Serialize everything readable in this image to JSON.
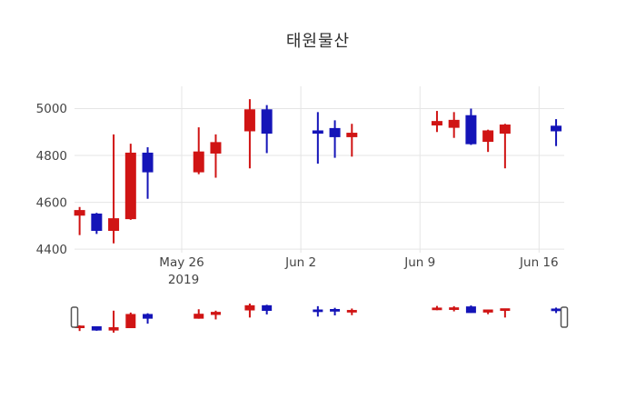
{
  "title": "태원물산",
  "chart_data": {
    "type": "candlestick",
    "title": "태원물산",
    "ylabel": "",
    "xlabel": "",
    "ylim": [
      4385,
      5095
    ],
    "yticks": [
      4400,
      4600,
      4800,
      5000
    ],
    "xticks": [
      {
        "label": "May 26",
        "sublabel": "2019",
        "day": 0
      },
      {
        "label": "Jun 2",
        "sublabel": "",
        "day": 7
      },
      {
        "label": "Jun 9",
        "sublabel": "",
        "day": 14
      },
      {
        "label": "Jun 16",
        "sublabel": "",
        "day": 21
      }
    ],
    "legend": "none",
    "grid": true,
    "increasing_color": "#d01414",
    "decreasing_color": "#1414b8",
    "gridline_color": "#e5e5e5",
    "tick_label_color": "#444444",
    "rangeslider": {
      "present": true,
      "handle_fill": "#ffffff",
      "handle_border": "#555555"
    },
    "candles": [
      {
        "date": "May 20",
        "day": -6,
        "open": 4545,
        "high": 4580,
        "low": 4460,
        "close": 4565,
        "direction": "up"
      },
      {
        "date": "May 21",
        "day": -5,
        "open": 4550,
        "high": 4555,
        "low": 4465,
        "close": 4480,
        "direction": "down"
      },
      {
        "date": "May 22",
        "day": -4,
        "open": 4480,
        "high": 4890,
        "low": 4425,
        "close": 4530,
        "direction": "up"
      },
      {
        "date": "May 23",
        "day": -3,
        "open": 4530,
        "high": 4850,
        "low": 4525,
        "close": 4810,
        "direction": "up"
      },
      {
        "date": "May 24",
        "day": -2,
        "open": 4810,
        "high": 4835,
        "low": 4615,
        "close": 4730,
        "direction": "down"
      },
      {
        "date": "May 27",
        "day": 1,
        "open": 4730,
        "high": 4920,
        "low": 4720,
        "close": 4815,
        "direction": "up"
      },
      {
        "date": "May 28",
        "day": 2,
        "open": 4810,
        "high": 4890,
        "low": 4705,
        "close": 4855,
        "direction": "up"
      },
      {
        "date": "May 30",
        "day": 4,
        "open": 4905,
        "high": 5040,
        "low": 4745,
        "close": 4995,
        "direction": "up"
      },
      {
        "date": "May 31",
        "day": 5,
        "open": 4995,
        "high": 5015,
        "low": 4810,
        "close": 4895,
        "direction": "down"
      },
      {
        "date": "Jun 3",
        "day": 8,
        "open": 4905,
        "high": 4985,
        "low": 4765,
        "close": 4895,
        "direction": "down"
      },
      {
        "date": "Jun 4",
        "day": 9,
        "open": 4915,
        "high": 4950,
        "low": 4790,
        "close": 4880,
        "direction": "down"
      },
      {
        "date": "Jun 5",
        "day": 10,
        "open": 4880,
        "high": 4935,
        "low": 4795,
        "close": 4895,
        "direction": "up"
      },
      {
        "date": "Jun 10",
        "day": 15,
        "open": 4930,
        "high": 4990,
        "low": 4900,
        "close": 4945,
        "direction": "up"
      },
      {
        "date": "Jun 11",
        "day": 16,
        "open": 4920,
        "high": 4985,
        "low": 4875,
        "close": 4950,
        "direction": "up"
      },
      {
        "date": "Jun 12",
        "day": 17,
        "open": 4970,
        "high": 5000,
        "low": 4845,
        "close": 4850,
        "direction": "down"
      },
      {
        "date": "Jun 13",
        "day": 18,
        "open": 4860,
        "high": 4910,
        "low": 4815,
        "close": 4905,
        "direction": "up"
      },
      {
        "date": "Jun 14",
        "day": 19,
        "open": 4895,
        "high": 4935,
        "low": 4745,
        "close": 4930,
        "direction": "up"
      },
      {
        "date": "Jun 17",
        "day": 22,
        "open": 4925,
        "high": 4955,
        "low": 4840,
        "close": 4905,
        "direction": "down"
      }
    ]
  }
}
